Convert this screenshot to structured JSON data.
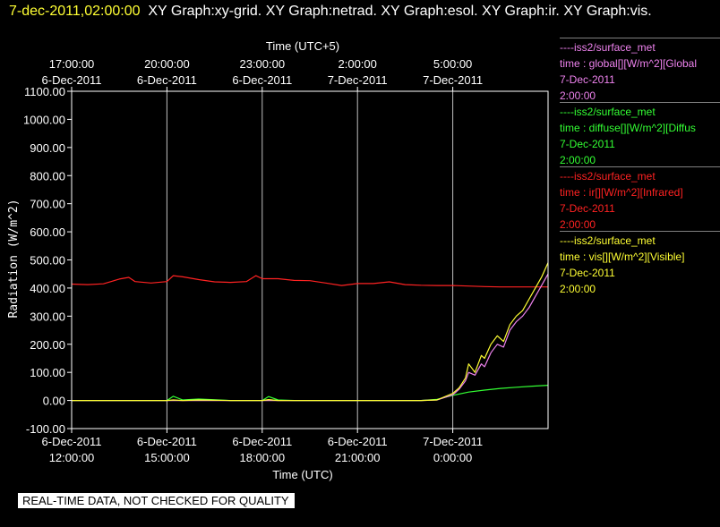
{
  "header": {
    "timestamp": "7-dec-2011,02:00:00",
    "title": "XY Graph:xy-grid.  XY Graph:netrad.  XY Graph:esol.  XY Graph:ir.  XY Graph:vis."
  },
  "notice": "REAL-TIME DATA, NOT CHECKED FOR QUALITY",
  "colors": {
    "background": "#000000",
    "axes": "#ffffff",
    "grid": "#bfbfbf",
    "global": "#ee82ee",
    "diffuse": "#33ff33",
    "ir": "#ff2222",
    "vis": "#ffff33"
  },
  "legend": [
    {
      "source": "----iss2/surface_met",
      "label": "time : global[][W/m^2][Global",
      "date": "7-Dec-2011",
      "time": "2:00:00",
      "color": "#ee82ee"
    },
    {
      "source": "----iss2/surface_met",
      "label": "time : diffuse[][W/m^2][Diffus",
      "date": "7-Dec-2011",
      "time": "2:00:00",
      "color": "#33ff33"
    },
    {
      "source": "----iss2/surface_met",
      "label": "time : ir[][W/m^2][Infrared]",
      "date": "7-Dec-2011",
      "time": "2:00:00",
      "color": "#ff2222"
    },
    {
      "source": "----iss2/surface_met",
      "label": "time : vis[][W/m^2][Visible]",
      "date": "7-Dec-2011",
      "time": "2:00:00",
      "color": "#ffff33"
    }
  ],
  "chart_data": {
    "type": "line",
    "ylabel": "Radiation (W/m^2)",
    "xlabel": "Time (UTC)",
    "x2label": "Time (UTC+5)",
    "ylim": [
      -100,
      1100
    ],
    "xlim": [
      0,
      15
    ],
    "grid": true,
    "yticks": [
      "-100.00",
      "0.00",
      "100.00",
      "200.00",
      "300.00",
      "400.00",
      "500.00",
      "600.00",
      "700.00",
      "800.00",
      "900.00",
      "1000.00",
      "1100.00"
    ],
    "bottom_ticks": [
      {
        "x": 0,
        "date": "6-Dec-2011",
        "time": "12:00:00"
      },
      {
        "x": 3,
        "date": "6-Dec-2011",
        "time": "15:00:00"
      },
      {
        "x": 6,
        "date": "6-Dec-2011",
        "time": "18:00:00"
      },
      {
        "x": 9,
        "date": "6-Dec-2011",
        "time": "21:00:00"
      },
      {
        "x": 12,
        "date": "7-Dec-2011",
        "time": "0:00:00"
      }
    ],
    "top_ticks": [
      {
        "x": 0,
        "time": "17:00:00",
        "date": "6-Dec-2011"
      },
      {
        "x": 3,
        "time": "20:00:00",
        "date": "6-Dec-2011"
      },
      {
        "x": 6,
        "time": "23:00:00",
        "date": "6-Dec-2011"
      },
      {
        "x": 9,
        "time": "2:00:00",
        "date": "7-Dec-2011"
      },
      {
        "x": 12,
        "time": "5:00:00",
        "date": "7-Dec-2011"
      }
    ],
    "series": [
      {
        "name": "ir",
        "color": "#ff2222",
        "x": [
          0,
          0.5,
          1,
          1.5,
          1.8,
          2,
          2.5,
          3,
          3.2,
          3.5,
          4,
          4.5,
          5,
          5.5,
          5.8,
          6,
          6.5,
          7,
          7.5,
          8,
          8.5,
          9,
          9.5,
          10,
          10.5,
          11,
          11.5,
          12,
          12.5,
          13,
          13.5,
          14,
          14.5,
          15
        ],
        "y": [
          414,
          412,
          415,
          432,
          438,
          423,
          418,
          423,
          444,
          440,
          430,
          422,
          420,
          423,
          444,
          433,
          433,
          427,
          426,
          418,
          409,
          416,
          416,
          422,
          412,
          410,
          409,
          409,
          407,
          405,
          404,
          404,
          404,
          404
        ]
      },
      {
        "name": "diffuse",
        "color": "#33ff33",
        "x": [
          0,
          1,
          2,
          3,
          3.2,
          3.5,
          4,
          5,
          6,
          6.2,
          6.5,
          7,
          8,
          9,
          10,
          11,
          11.5,
          12,
          12.5,
          13,
          13.5,
          14,
          14.5,
          15
        ],
        "y": [
          0,
          0,
          0,
          0,
          15,
          2,
          5,
          0,
          0,
          14,
          2,
          0,
          0,
          0,
          0,
          0,
          4,
          18,
          30,
          37,
          43,
          47,
          51,
          54
        ]
      },
      {
        "name": "global",
        "color": "#ee82ee",
        "x": [
          0,
          1,
          2,
          3,
          4,
          5,
          6,
          7,
          8,
          9,
          10,
          11,
          11.5,
          12,
          12.2,
          12.4,
          12.5,
          12.7,
          12.9,
          13,
          13.2,
          13.4,
          13.6,
          13.8,
          14,
          14.2,
          14.4,
          14.6,
          14.8,
          15
        ],
        "y": [
          0,
          0,
          0,
          0,
          0,
          0,
          0,
          0,
          0,
          0,
          0,
          0,
          2,
          20,
          40,
          70,
          100,
          90,
          130,
          120,
          170,
          200,
          190,
          250,
          280,
          300,
          330,
          370,
          410,
          450
        ]
      },
      {
        "name": "vis",
        "color": "#ffff33",
        "x": [
          0,
          1,
          2,
          3,
          3.2,
          3.5,
          4,
          5,
          6,
          6.2,
          6.5,
          7,
          8,
          9,
          10,
          11,
          11.5,
          12,
          12.2,
          12.4,
          12.5,
          12.7,
          12.9,
          13,
          13.2,
          13.4,
          13.6,
          13.8,
          14,
          14.2,
          14.4,
          14.6,
          14.8,
          15
        ],
        "y": [
          0,
          0,
          0,
          0,
          2,
          0,
          2,
          0,
          0,
          3,
          0,
          0,
          0,
          0,
          0,
          0,
          2,
          25,
          45,
          80,
          130,
          100,
          160,
          150,
          200,
          230,
          210,
          270,
          300,
          320,
          360,
          400,
          440,
          490
        ]
      }
    ]
  }
}
